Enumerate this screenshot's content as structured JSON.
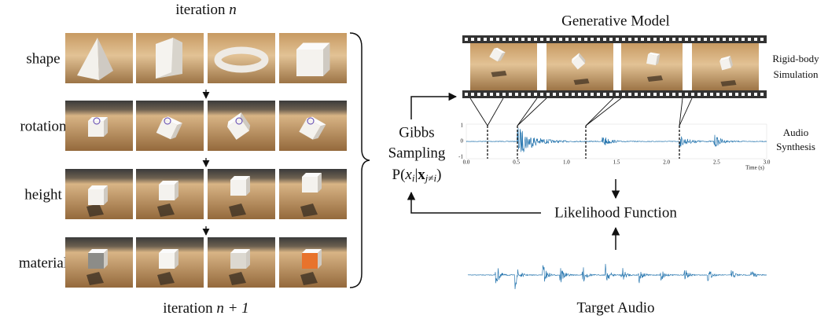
{
  "iteration_top": {
    "text": "iteration",
    "var": "n"
  },
  "iteration_bottom": {
    "text": "iteration",
    "var": "n + 1"
  },
  "rows": [
    "shape",
    "rotation",
    "height",
    "material"
  ],
  "generative_model": "Generative Model",
  "simulation_label": [
    "Rigid-body",
    "Simulation"
  ],
  "sampling_label": [
    "Gibbs",
    "Sampling"
  ],
  "formula": [
    "P(",
    "x",
    "i",
    "|",
    "x",
    "j≠i",
    ")"
  ],
  "audio_plot": {
    "yticks": [
      "1",
      "0",
      "-1"
    ],
    "xticks": [
      "0.0",
      "0.5",
      "1.0",
      "1.5",
      "2.0",
      "2.5",
      "3.0"
    ],
    "xlabel": "Time (s)"
  },
  "synthesis_label": [
    "Audio",
    "Synthesis"
  ],
  "likelihood": "Likelihood Function",
  "target_audio": "Target Audio"
}
